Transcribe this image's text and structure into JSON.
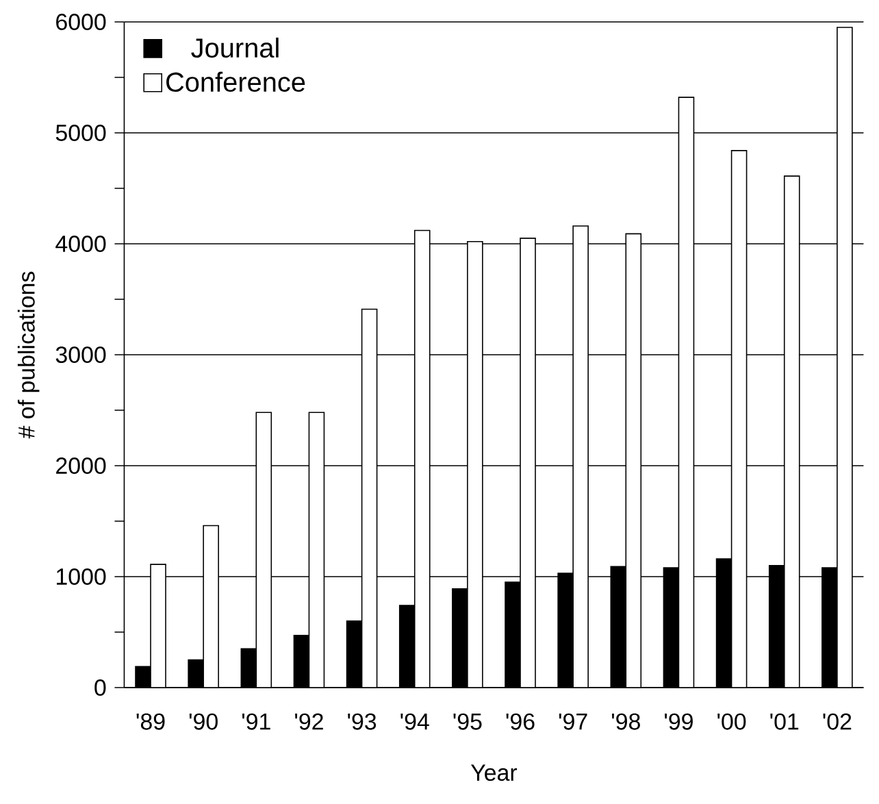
{
  "chart_data": {
    "type": "bar",
    "xlabel": "Year",
    "ylabel": "# of publications",
    "categories": [
      "'89",
      "'90",
      "'91",
      "'92",
      "'93",
      "'94",
      "'95",
      "'96",
      "'97",
      "'98",
      "'99",
      "'00",
      "'01",
      "'02"
    ],
    "series": [
      {
        "name": "Journal",
        "color": "#000000",
        "values": [
          190,
          250,
          350,
          470,
          600,
          740,
          890,
          950,
          1030,
          1090,
          1080,
          1160,
          1100,
          1080
        ]
      },
      {
        "name": "Conference",
        "color": "#ffffff",
        "values": [
          1110,
          1460,
          2480,
          2480,
          3410,
          4120,
          4020,
          4050,
          4160,
          4090,
          5320,
          4840,
          4610,
          5950
        ]
      }
    ],
    "ylim": [
      0,
      6000
    ],
    "yticks": [
      0,
      1000,
      2000,
      3000,
      4000,
      5000,
      6000
    ],
    "grid": "y",
    "legend": "top left"
  }
}
